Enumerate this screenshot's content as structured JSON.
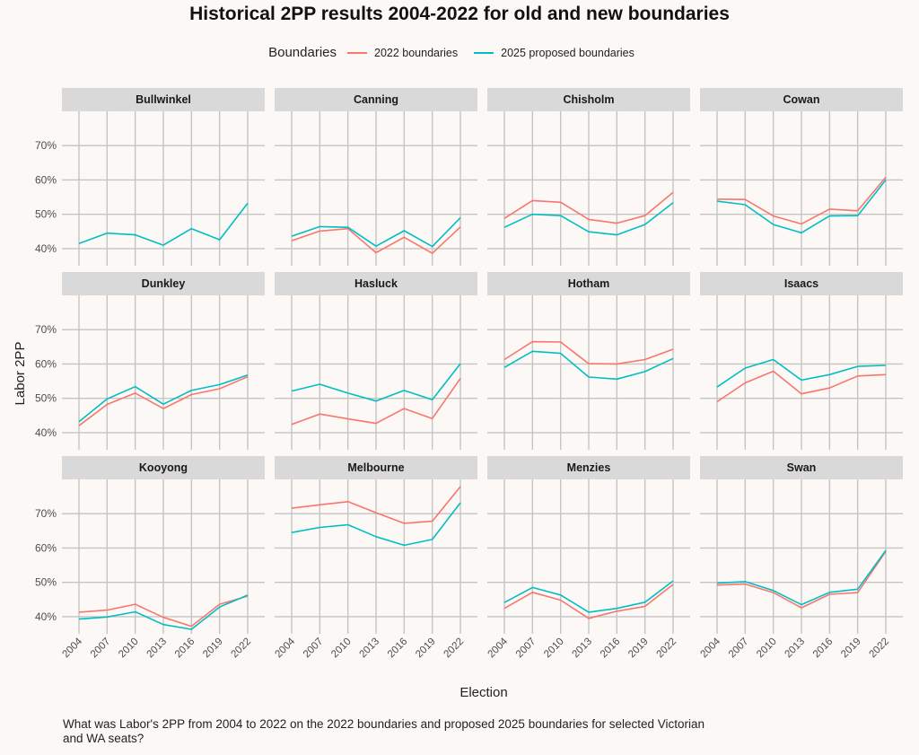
{
  "chart_data": {
    "type": "line",
    "title": "Historical 2PP results 2004-2022 for old and new boundaries",
    "xlabel": "Election",
    "ylabel": "Labor 2PP",
    "caption": "What was Labor's 2PP from 2004 to 2022 on the 2022 boundaries and proposed 2025 boundaries for selected Victorian and WA seats?",
    "legend_title": "Boundaries",
    "legend_position": "top",
    "grid": true,
    "x": [
      2004,
      2007,
      2010,
      2013,
      2016,
      2019,
      2022
    ],
    "x_tick_labels": [
      "2004",
      "2007",
      "2010",
      "2013",
      "2016",
      "2019",
      "2022"
    ],
    "ylim": [
      35,
      80
    ],
    "y_ticks": [
      40,
      50,
      60,
      70
    ],
    "y_tick_labels": [
      "40%",
      "50%",
      "60%",
      "70%"
    ],
    "series_names": [
      "2022 boundaries",
      "2025 proposed boundaries"
    ],
    "colors": {
      "2022 boundaries": "#F8766D",
      "2025 proposed boundaries": "#00BFC4"
    },
    "panels": [
      {
        "name": "Bullwinkel",
        "series": [
          {
            "name": "2025 proposed boundaries",
            "values": [
              41.5,
              44.5,
              44.0,
              41.0,
              45.8,
              42.6,
              53.2
            ]
          }
        ]
      },
      {
        "name": "Canning",
        "series": [
          {
            "name": "2022 boundaries",
            "values": [
              42.3,
              45.1,
              45.8,
              38.8,
              43.3,
              38.6,
              46.3
            ]
          },
          {
            "name": "2025 proposed boundaries",
            "values": [
              43.6,
              46.4,
              46.2,
              40.7,
              45.2,
              40.6,
              49.0
            ]
          }
        ]
      },
      {
        "name": "Chisholm",
        "series": [
          {
            "name": "2022 boundaries",
            "values": [
              48.8,
              54.0,
              53.5,
              48.5,
              47.4,
              49.6,
              56.4
            ]
          },
          {
            "name": "2025 proposed boundaries",
            "values": [
              46.2,
              50.0,
              49.6,
              44.9,
              44.0,
              47.0,
              53.4
            ]
          }
        ]
      },
      {
        "name": "Cowan",
        "series": [
          {
            "name": "2022 boundaries",
            "values": [
              54.4,
              54.3,
              49.5,
              47.2,
              51.5,
              51.0,
              60.8
            ]
          },
          {
            "name": "2025 proposed boundaries",
            "values": [
              53.8,
              52.8,
              47.0,
              44.6,
              49.5,
              49.6,
              60.0
            ]
          }
        ]
      },
      {
        "name": "Dunkley",
        "series": [
          {
            "name": "2022 boundaries",
            "values": [
              42.0,
              48.2,
              51.5,
              47.0,
              51.1,
              52.8,
              56.3
            ]
          },
          {
            "name": "2025 proposed boundaries",
            "values": [
              43.2,
              49.8,
              53.4,
              48.3,
              52.3,
              54.0,
              56.8
            ]
          }
        ]
      },
      {
        "name": "Hasluck",
        "series": [
          {
            "name": "2022 boundaries",
            "values": [
              42.4,
              45.4,
              44.0,
              42.7,
              47.0,
              44.1,
              55.8
            ]
          },
          {
            "name": "2025 proposed boundaries",
            "values": [
              52.1,
              54.1,
              51.5,
              49.2,
              52.3,
              49.6,
              60.1
            ]
          }
        ]
      },
      {
        "name": "Hotham",
        "series": [
          {
            "name": "2022 boundaries",
            "values": [
              61.3,
              66.5,
              66.4,
              60.1,
              60.0,
              61.3,
              64.3
            ]
          },
          {
            "name": "2025 proposed boundaries",
            "values": [
              59.0,
              63.7,
              63.1,
              56.2,
              55.6,
              57.8,
              61.6
            ]
          }
        ]
      },
      {
        "name": "Isaacs",
        "series": [
          {
            "name": "2022 boundaries",
            "values": [
              49.0,
              54.5,
              57.9,
              51.3,
              53.0,
              56.5,
              56.9
            ]
          },
          {
            "name": "2025 proposed boundaries",
            "values": [
              53.3,
              58.8,
              61.3,
              55.3,
              56.9,
              59.3,
              59.6
            ]
          }
        ]
      },
      {
        "name": "Kooyong",
        "series": [
          {
            "name": "2022 boundaries",
            "values": [
              41.3,
              41.9,
              43.6,
              39.8,
              37.2,
              43.6,
              46.0
            ]
          },
          {
            "name": "2025 proposed boundaries",
            "values": [
              39.3,
              39.9,
              41.4,
              37.7,
              36.3,
              42.8,
              46.3
            ]
          }
        ]
      },
      {
        "name": "Melbourne",
        "series": [
          {
            "name": "2022 boundaries",
            "values": [
              71.6,
              72.6,
              73.5,
              70.3,
              67.2,
              67.8,
              77.9
            ]
          },
          {
            "name": "2025 proposed boundaries",
            "values": [
              64.5,
              66.0,
              66.8,
              63.3,
              60.8,
              62.5,
              73.2
            ]
          }
        ]
      },
      {
        "name": "Menzies",
        "series": [
          {
            "name": "2022 boundaries",
            "values": [
              42.4,
              47.1,
              44.8,
              39.5,
              41.6,
              43.0,
              49.4
            ]
          },
          {
            "name": "2025 proposed boundaries",
            "values": [
              44.1,
              48.5,
              46.3,
              41.3,
              42.4,
              44.2,
              50.4
            ]
          }
        ]
      },
      {
        "name": "Swan",
        "series": [
          {
            "name": "2022 boundaries",
            "values": [
              49.2,
              49.5,
              47.0,
              42.6,
              46.5,
              47.0,
              59.0
            ]
          },
          {
            "name": "2025 proposed boundaries",
            "values": [
              49.8,
              50.2,
              47.6,
              43.5,
              47.1,
              48.0,
              59.3
            ]
          }
        ]
      }
    ]
  }
}
